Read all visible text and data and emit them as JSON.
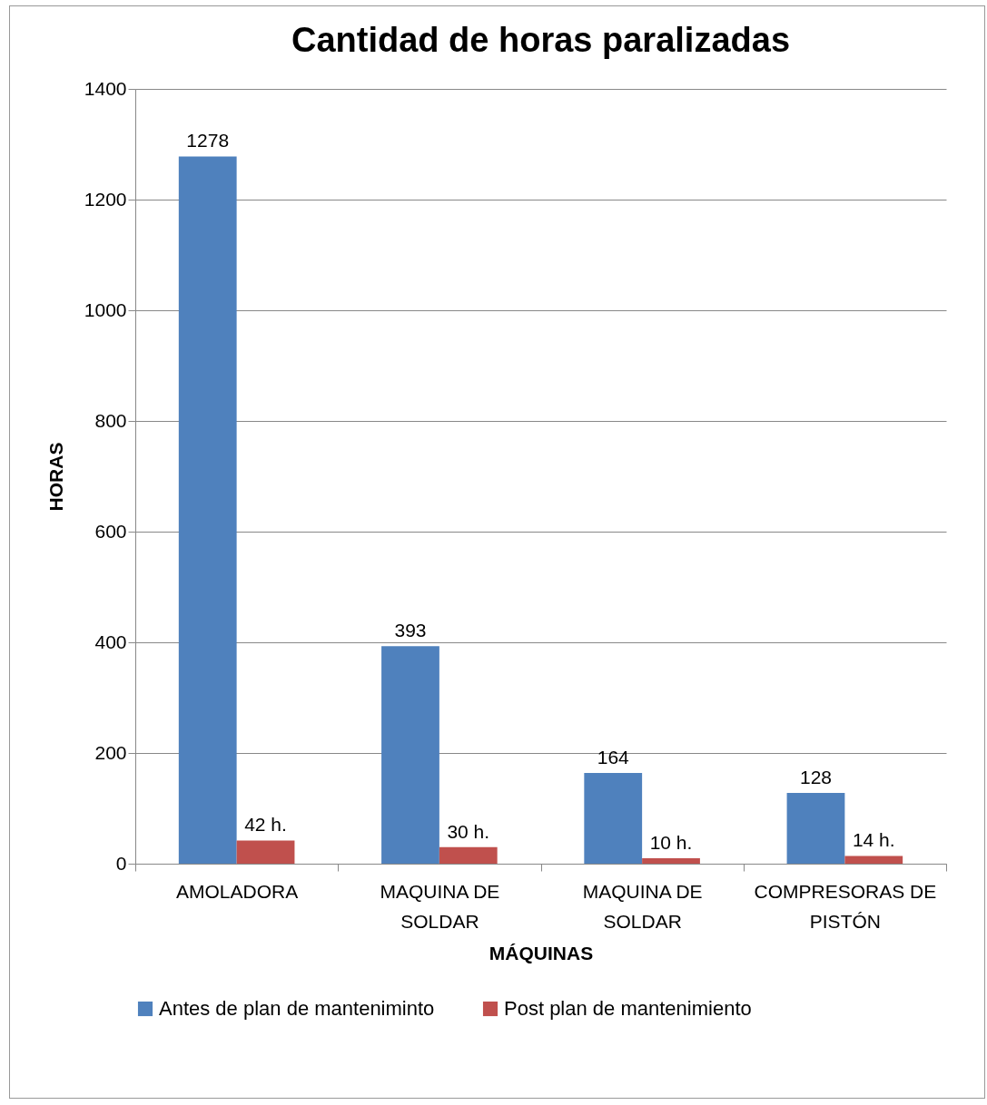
{
  "chart_data": {
    "type": "bar",
    "title": "Cantidad de horas paralizadas",
    "xlabel": "MÁQUINAS",
    "ylabel": "HORAS",
    "categories": [
      "AMOLADORA",
      "MAQUINA DE SOLDAR",
      "MAQUINA DE SOLDAR",
      "COMPRESORAS DE PISTÓN"
    ],
    "series": [
      {
        "name": "Antes de plan de manteniminto",
        "color": "#4f81bd",
        "values": [
          1278,
          393,
          164,
          128
        ],
        "value_labels": [
          "1278",
          "393",
          "164",
          "128"
        ]
      },
      {
        "name": "Post plan de mantenimiento",
        "color": "#c0504d",
        "values": [
          42,
          30,
          10,
          14
        ],
        "value_labels": [
          "42 h.",
          "30 h.",
          "10 h.",
          "14 h."
        ]
      }
    ],
    "ylim": [
      0,
      1400
    ],
    "yticks": [
      0,
      200,
      400,
      600,
      800,
      1000,
      1200,
      1400
    ],
    "grid": "y",
    "legend": "bottom"
  }
}
